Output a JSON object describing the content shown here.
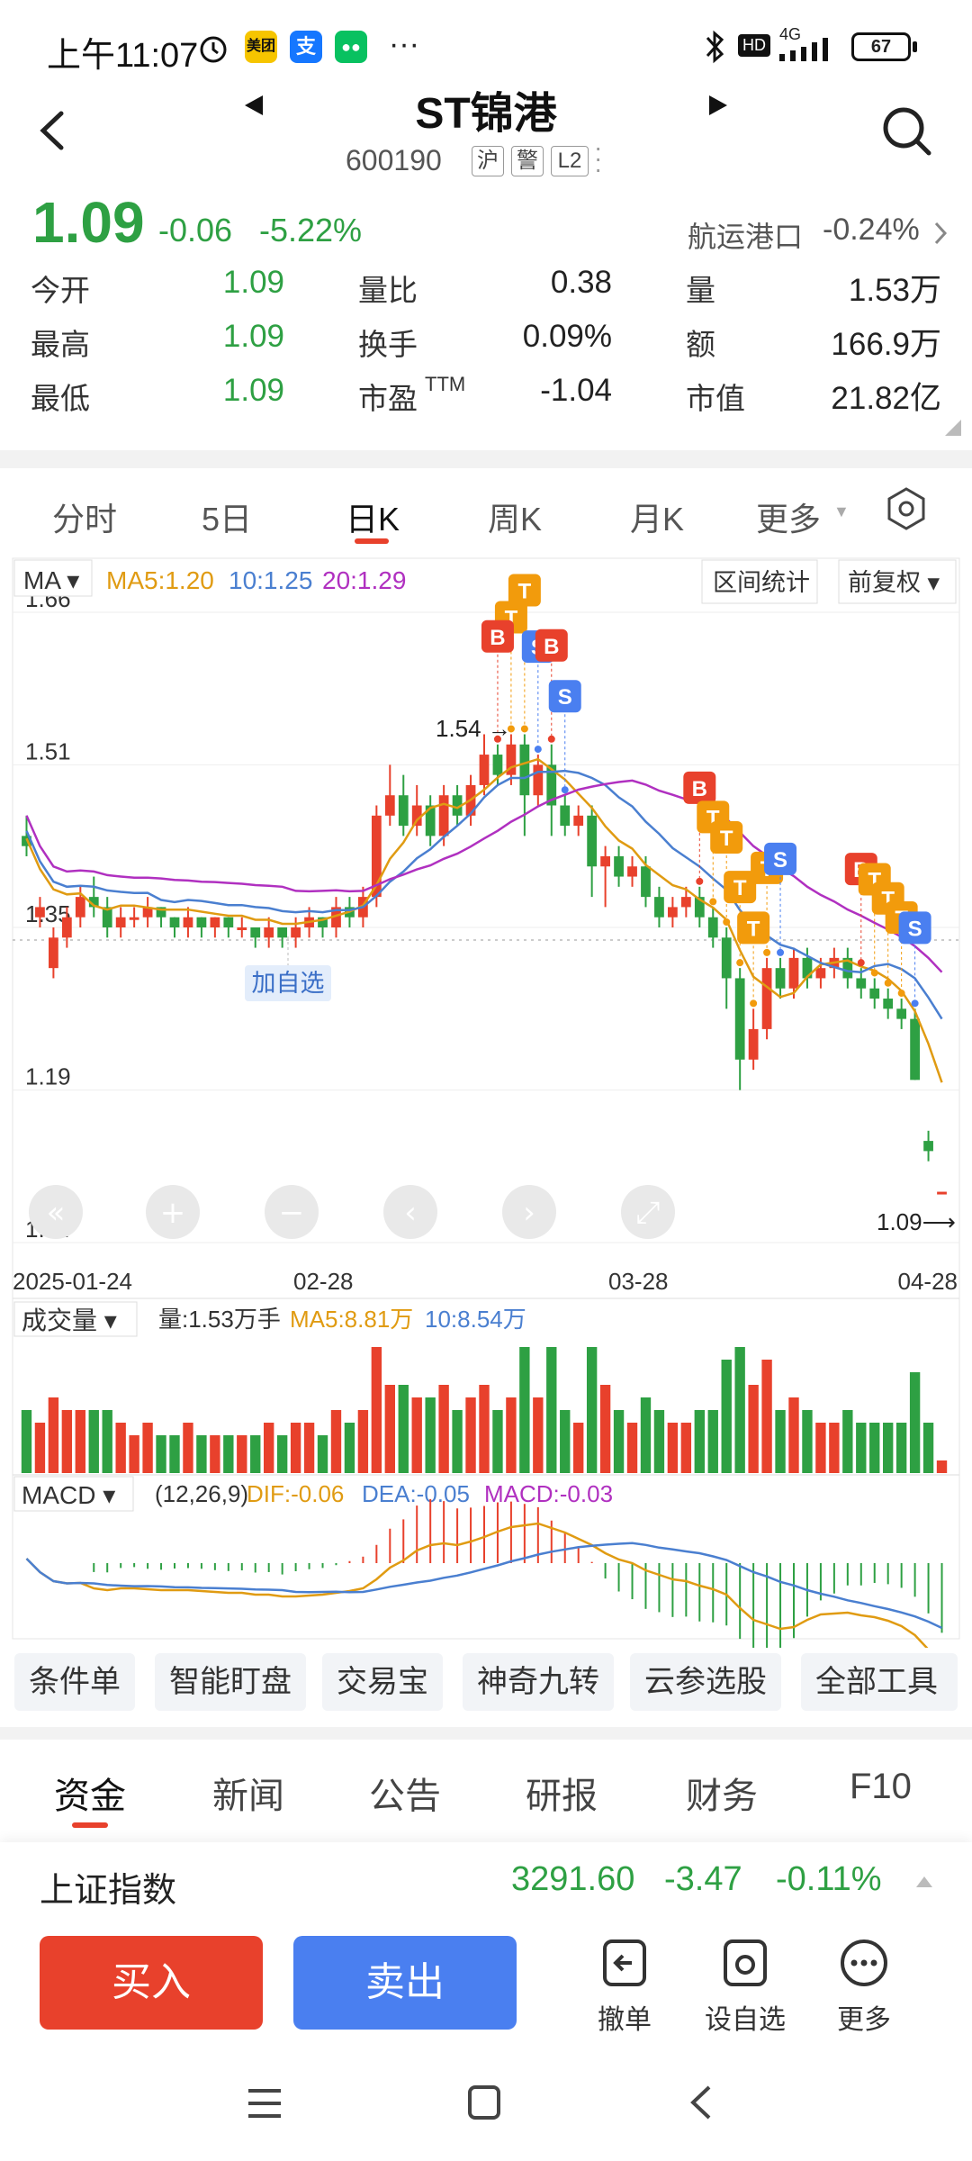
{
  "status": {
    "time": "上午11:07",
    "battery": "67",
    "net": "4G",
    "hd": "HD",
    "icon_meituan": "美团",
    "icon_alipay": "支",
    "more_dots": "···"
  },
  "header": {
    "title": "ST锦港",
    "code": "600190",
    "tags": [
      "沪",
      "警",
      "L2"
    ]
  },
  "quote": {
    "price": "1.09",
    "change": "-0.06",
    "change_pct": "-5.22%",
    "sector": "航运港口",
    "sector_pct": "-0.24%",
    "rows": [
      [
        {
          "label": "今开",
          "value": "1.09",
          "green": true
        },
        {
          "label": "量比",
          "value": "0.38"
        },
        {
          "label": "量",
          "value": "1.53万"
        }
      ],
      [
        {
          "label": "最高",
          "value": "1.09",
          "green": true
        },
        {
          "label": "换手",
          "value": "0.09%"
        },
        {
          "label": "额",
          "value": "166.9万"
        }
      ],
      [
        {
          "label": "最低",
          "value": "1.09",
          "green": true
        },
        {
          "label": "市盈",
          "value": "-1.04"
        },
        {
          "label": "市值",
          "value": "21.82亿"
        }
      ]
    ],
    "ttm_sup": "TTM"
  },
  "period_tabs": [
    "分时",
    "5日",
    "日K",
    "周K",
    "月K",
    "更多"
  ],
  "active_tab": "日K",
  "chart_controls": {
    "ma_label": "MA",
    "ma5": "MA5:1.20",
    "ma10": "10:1.25",
    "ma20": "20:1.29",
    "range_stats": "区间统计",
    "adjust": "前复权",
    "add_watch": "加自选",
    "high_mark": "1.54",
    "last_mark": "1.09"
  },
  "chart_data": {
    "type": "candlestick",
    "y_ticks": [
      "1.66",
      "1.51",
      "1.35",
      "1.19",
      "1.04"
    ],
    "ylim": [
      1.04,
      1.66
    ],
    "x_ticks": [
      "2025-01-24",
      "02-28",
      "03-28",
      "04-28"
    ],
    "candles": [
      [
        1.44,
        1.43,
        1.46,
        1.42
      ],
      [
        1.36,
        1.37,
        1.38,
        1.35
      ],
      [
        1.31,
        1.34,
        1.35,
        1.3
      ],
      [
        1.34,
        1.36,
        1.37,
        1.33
      ],
      [
        1.36,
        1.38,
        1.39,
        1.35
      ],
      [
        1.38,
        1.37,
        1.4,
        1.36
      ],
      [
        1.37,
        1.35,
        1.38,
        1.34
      ],
      [
        1.35,
        1.36,
        1.37,
        1.34
      ],
      [
        1.36,
        1.36,
        1.37,
        1.35
      ],
      [
        1.36,
        1.37,
        1.38,
        1.35
      ],
      [
        1.37,
        1.36,
        1.37,
        1.35
      ],
      [
        1.36,
        1.35,
        1.36,
        1.34
      ],
      [
        1.35,
        1.36,
        1.37,
        1.34
      ],
      [
        1.36,
        1.35,
        1.36,
        1.34
      ],
      [
        1.35,
        1.36,
        1.36,
        1.34
      ],
      [
        1.36,
        1.35,
        1.36,
        1.34
      ],
      [
        1.35,
        1.35,
        1.36,
        1.34
      ],
      [
        1.35,
        1.34,
        1.35,
        1.33
      ],
      [
        1.34,
        1.35,
        1.36,
        1.33
      ],
      [
        1.35,
        1.34,
        1.35,
        1.33
      ],
      [
        1.34,
        1.35,
        1.36,
        1.33
      ],
      [
        1.35,
        1.36,
        1.37,
        1.34
      ],
      [
        1.36,
        1.35,
        1.36,
        1.34
      ],
      [
        1.35,
        1.37,
        1.38,
        1.34
      ],
      [
        1.37,
        1.36,
        1.38,
        1.35
      ],
      [
        1.36,
        1.38,
        1.39,
        1.35
      ],
      [
        1.38,
        1.46,
        1.47,
        1.37
      ],
      [
        1.46,
        1.48,
        1.51,
        1.45
      ],
      [
        1.48,
        1.45,
        1.5,
        1.44
      ],
      [
        1.45,
        1.47,
        1.49,
        1.44
      ],
      [
        1.47,
        1.44,
        1.48,
        1.43
      ],
      [
        1.44,
        1.48,
        1.49,
        1.43
      ],
      [
        1.48,
        1.46,
        1.49,
        1.45
      ],
      [
        1.46,
        1.49,
        1.5,
        1.45
      ],
      [
        1.49,
        1.52,
        1.54,
        1.48
      ],
      [
        1.52,
        1.5,
        1.53,
        1.49
      ],
      [
        1.5,
        1.53,
        1.54,
        1.49
      ],
      [
        1.53,
        1.48,
        1.54,
        1.44
      ],
      [
        1.48,
        1.51,
        1.52,
        1.47
      ],
      [
        1.51,
        1.47,
        1.53,
        1.44
      ],
      [
        1.47,
        1.45,
        1.48,
        1.44
      ],
      [
        1.45,
        1.46,
        1.47,
        1.44
      ],
      [
        1.46,
        1.41,
        1.47,
        1.38
      ],
      [
        1.41,
        1.42,
        1.43,
        1.37
      ],
      [
        1.42,
        1.4,
        1.43,
        1.39
      ],
      [
        1.4,
        1.41,
        1.42,
        1.39
      ],
      [
        1.41,
        1.38,
        1.42,
        1.37
      ],
      [
        1.38,
        1.36,
        1.39,
        1.35
      ],
      [
        1.36,
        1.37,
        1.38,
        1.35
      ],
      [
        1.37,
        1.38,
        1.39,
        1.36
      ],
      [
        1.38,
        1.36,
        1.39,
        1.35
      ],
      [
        1.36,
        1.34,
        1.37,
        1.33
      ],
      [
        1.34,
        1.3,
        1.35,
        1.27
      ],
      [
        1.3,
        1.22,
        1.31,
        1.19
      ],
      [
        1.22,
        1.25,
        1.27,
        1.21
      ],
      [
        1.25,
        1.31,
        1.32,
        1.24
      ],
      [
        1.31,
        1.29,
        1.32,
        1.28
      ],
      [
        1.29,
        1.32,
        1.33,
        1.28
      ],
      [
        1.32,
        1.3,
        1.33,
        1.29
      ],
      [
        1.3,
        1.31,
        1.32,
        1.29
      ],
      [
        1.31,
        1.32,
        1.33,
        1.3
      ],
      [
        1.32,
        1.3,
        1.33,
        1.29
      ],
      [
        1.3,
        1.29,
        1.31,
        1.28
      ],
      [
        1.29,
        1.28,
        1.3,
        1.27
      ],
      [
        1.28,
        1.27,
        1.29,
        1.26
      ],
      [
        1.27,
        1.26,
        1.28,
        1.25
      ],
      [
        1.26,
        1.2,
        1.27,
        1.2
      ],
      [
        1.14,
        1.13,
        1.15,
        1.12
      ],
      [
        1.09,
        1.09,
        1.09,
        1.09
      ]
    ],
    "volume": {
      "label": "成交量",
      "vol": "量:1.53万手",
      "ma5": "MA5:8.81万",
      "ma10": "10:8.54万"
    },
    "macd": {
      "label": "MACD",
      "params": "(12,26,9)",
      "dif": "DIF:-0.06",
      "dea": "DEA:-0.05",
      "macd": "MACD:-0.03"
    }
  },
  "tools": [
    "条件单",
    "智能盯盘",
    "交易宝",
    "神奇九转",
    "云参选股",
    "全部工具"
  ],
  "info_tabs": [
    "资金",
    "新闻",
    "公告",
    "研报",
    "财务",
    "F10"
  ],
  "index": {
    "name": "上证指数",
    "value": "3291.60",
    "change": "-3.47",
    "pct": "-0.11%"
  },
  "actions": {
    "buy": "买入",
    "sell": "卖出",
    "cancel": "撤单",
    "watch": "设自选",
    "more": "更多"
  },
  "colors": {
    "up": "#e8412c",
    "down": "#2ea043",
    "buy": "#e8412c",
    "sell": "#4a7ff0"
  }
}
